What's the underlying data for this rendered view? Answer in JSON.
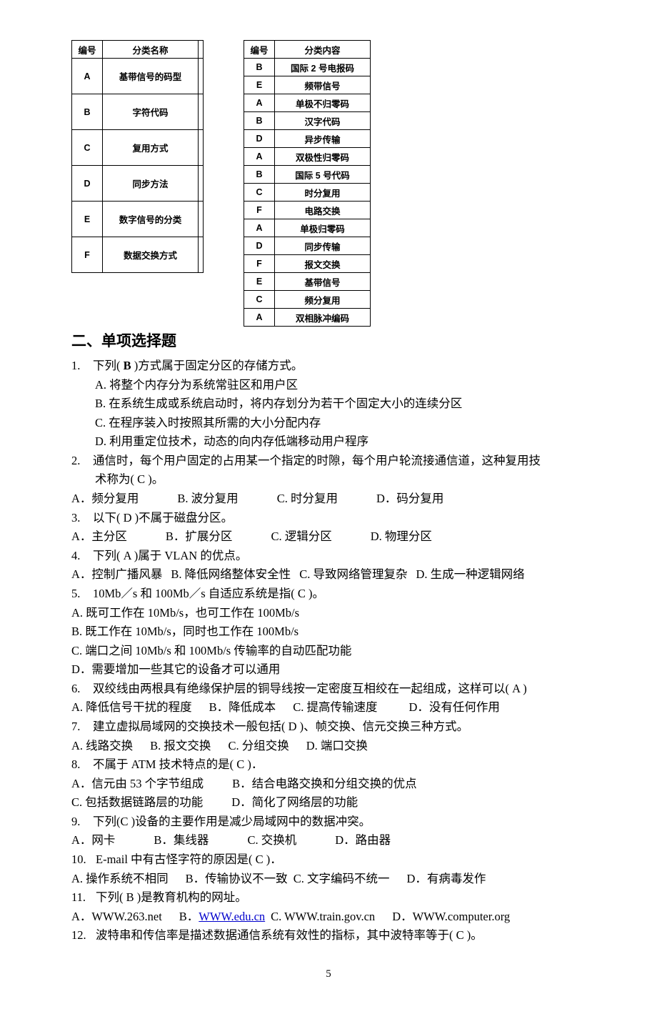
{
  "leftTable": {
    "headers": [
      "编号",
      "分类名称",
      ""
    ],
    "rows": [
      {
        "code": "A",
        "name": "基带信号的码型"
      },
      {
        "code": "B",
        "name": "字符代码"
      },
      {
        "code": "C",
        "name": "复用方式"
      },
      {
        "code": "D",
        "name": "同步方法"
      },
      {
        "code": "E",
        "name": "数字信号的分类"
      },
      {
        "code": "F",
        "name": "数据交换方式"
      }
    ]
  },
  "rightTable": {
    "headers": [
      "编号",
      "分类内容"
    ],
    "rows": [
      {
        "code": "B",
        "cont": "国际 2 号电报码"
      },
      {
        "code": "E",
        "cont": "频带信号"
      },
      {
        "code": "A",
        "cont": "单极不归零码"
      },
      {
        "code": "B",
        "cont": "汉字代码"
      },
      {
        "code": "D",
        "cont": "异步传输"
      },
      {
        "code": "A",
        "cont": "双极性归零码"
      },
      {
        "code": "B",
        "cont": "国际 5 号代码"
      },
      {
        "code": "C",
        "cont": "时分复用"
      },
      {
        "code": "F",
        "cont": "电路交换"
      },
      {
        "code": "A",
        "cont": "单极归零码"
      },
      {
        "code": "D",
        "cont": "同步传输"
      },
      {
        "code": "F",
        "cont": "报文交换"
      },
      {
        "code": "E",
        "cont": "基带信号"
      },
      {
        "code": "C",
        "cont": "频分复用"
      },
      {
        "code": "A",
        "cont": "双相脉冲编码"
      }
    ]
  },
  "sectionTitle": "二、单项选择题",
  "q1": {
    "num": "1.",
    "stem_a": "下列( ",
    "stem_bold": "B",
    "stem_b": " )方式属于固定分区的存储方式。",
    "A": "A. 将整个内存分为系统常驻区和用户区",
    "B": "B. 在系统生成或系统启动时，将内存划分为若干个固定大小的连续分区",
    "C": "C. 在程序装入时按照其所需的大小分配内存",
    "D": "D. 利用重定位技术，动态的向内存低端移动用户程序"
  },
  "q2": {
    "num": "2.",
    "stem": "通信时，每个用户固定的占用某一个指定的时隙，每个用户轮流接通信道，这种复用技",
    "stem2": "术称为( C )。",
    "opts": [
      "A．频分复用",
      "B. 波分复用",
      "C. 时分复用",
      "D．码分复用"
    ]
  },
  "q3": {
    "num": "3.",
    "stem": "以下( D )不属于磁盘分区。",
    "opts": [
      "A．主分区",
      "B．扩展分区",
      "C. 逻辑分区",
      "D. 物理分区"
    ]
  },
  "q4": {
    "num": "4.",
    "stem": "下列( A )属于 VLAN 的优点。",
    "opts": [
      "A．控制广播风暴",
      "B. 降低网络整体安全性",
      "C. 导致网络管理复杂",
      "D. 生成一种逻辑网络"
    ]
  },
  "q5": {
    "num": "5.",
    "stem": "10Mb／s 和 100Mb／s 自适应系统是指( C )。",
    "A": "A. 既可工作在 10Mb/s，也可工作在 100Mb/s",
    "B": "B. 既工作在 10Mb/s，同时也工作在 100Mb/s",
    "C": "C. 端口之间 10Mb/s 和 100Mb/s 传输率的自动匹配功能",
    "D": "D．需要增加一些其它的设备才可以通用"
  },
  "q6": {
    "num": "6.",
    "stem": "双绞线由两根具有绝缘保护层的铜导线按一定密度互相绞在一起组成，这样可以( A )",
    "opts": [
      "A. 降低信号干扰的程度",
      "B．降低成本",
      "C. 提高传输速度",
      "D．没有任何作用"
    ]
  },
  "q7": {
    "num": "7.",
    "stem": "建立虚拟局域网的交换技术一般包括( D )、帧交换、信元交换三种方式。",
    "opts": [
      "A. 线路交换",
      "B. 报文交换",
      "C. 分组交换",
      "D. 端口交换"
    ]
  },
  "q8": {
    "num": "8.",
    "stem": "不属于 ATM 技术特点的是( C )．",
    "A": "A．信元由 53 个字节组成",
    "B": "B．结合电路交换和分组交换的优点",
    "C": "C. 包括数据链路层的功能",
    "D": "D．简化了网络层的功能"
  },
  "q9": {
    "num": "9.",
    "stem": "下列(C )设备的主要作用是减少局域网中的数据冲突。",
    "opts": [
      "A．网卡",
      "B．集线器",
      "C. 交换机",
      "D．路由器"
    ]
  },
  "q10": {
    "num": "10.",
    "stem": "E-mail 中有古怪字符的原因是( C )．",
    "opts": [
      "A. 操作系统不相同",
      "B．传输协议不一致",
      "C. 文字编码不统一",
      "D．有病毒发作"
    ]
  },
  "q11": {
    "num": "11.",
    "stem": "下列(   B   )是教育机构的网址。",
    "A": "A．WWW.263.net",
    "Bpre": "B．",
    "Blink": "WWW.edu.cn",
    "C": "C. WWW.train.gov.cn",
    "D": "D．WWW.computer.org"
  },
  "q12": {
    "num": "12.",
    "stem": "波特串和传信率是描述数据通信系统有效性的指标，其中波特率等于( C )。"
  },
  "pageNumber": "5"
}
